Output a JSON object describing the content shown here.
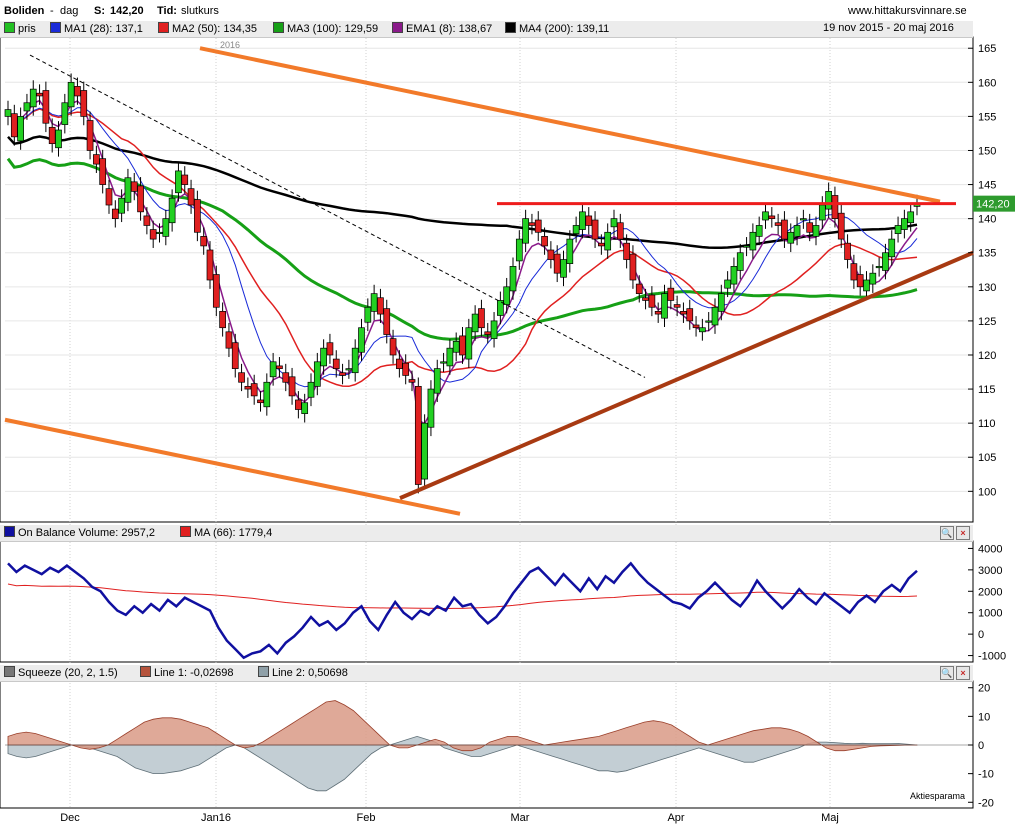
{
  "header": {
    "ticker": "Boliden",
    "dash": "-",
    "period": "dag",
    "price_label": "S:",
    "price_value": "142,20",
    "time_label": "Tid:",
    "time_value": "slutkurs",
    "site": "www.hittakursvinnare.se",
    "date_range": "19 nov 2015 - 20 maj 2016",
    "year_marker": "2016",
    "current_price": "142,20",
    "source": "Aktiesparama"
  },
  "legend_main": [
    {
      "label": "pris",
      "color": "#22c022"
    },
    {
      "label": "MA1 (28): 137,1",
      "color": "#1a2bd8"
    },
    {
      "label": "MA2 (50): 134,35",
      "color": "#e02020"
    },
    {
      "label": "MA3 (100): 129,59",
      "color": "#16a016"
    },
    {
      "label": "EMA1 (8): 138,67",
      "color": "#8a1a8a"
    },
    {
      "label": "MA4 (200): 139,11",
      "color": "#000000"
    }
  ],
  "legend_obv": [
    {
      "label": "On Balance Volume: 2957,2",
      "color": "#1010a0"
    },
    {
      "label": "MA (66): 1779,4",
      "color": "#e02020"
    }
  ],
  "legend_squeeze": [
    {
      "label": "Squeeze (20, 2, 1.5)",
      "color": "#777777"
    },
    {
      "label": "Line 1: -0,02698",
      "color": "#b5533c"
    },
    {
      "label": "Line 2: 0,50698",
      "color": "#8fa0a8"
    }
  ],
  "chart_data": [
    {
      "type": "candlestick",
      "title": "Boliden - dag",
      "yticks": [
        100,
        105,
        110,
        115,
        120,
        125,
        130,
        135,
        140,
        145,
        150,
        155,
        160,
        165
      ],
      "ylim": [
        95.5,
        166.5
      ],
      "xlabels": [
        "Dec",
        "Jan16",
        "Feb",
        "Mar",
        "Apr",
        "Maj"
      ],
      "closes": [
        156,
        152,
        155,
        157,
        159,
        158,
        154,
        151,
        153,
        157,
        160,
        158,
        155,
        150,
        148,
        145,
        142,
        140,
        143,
        146,
        144,
        141,
        139,
        137,
        138,
        140,
        143,
        147,
        145,
        142,
        138,
        136,
        131,
        127,
        124,
        121,
        118,
        116,
        115,
        114,
        113,
        116,
        119,
        118,
        116,
        114,
        112,
        113,
        116,
        119,
        121,
        120,
        118,
        117,
        118,
        121,
        124,
        127,
        129,
        126,
        123,
        120,
        118,
        117,
        116,
        101,
        110,
        115,
        118,
        119,
        121,
        122,
        120,
        124,
        126,
        124,
        123,
        125,
        128,
        130,
        133,
        137,
        140,
        139,
        138,
        136,
        134,
        132,
        134,
        137,
        139,
        141,
        139,
        137,
        136,
        138,
        140,
        137,
        134,
        131,
        129,
        128,
        127,
        126,
        129,
        128,
        127,
        126,
        125,
        124,
        124,
        125,
        127,
        129,
        131,
        133,
        135,
        136,
        138,
        139,
        141,
        140,
        139,
        137,
        138,
        139,
        140,
        138,
        139,
        142,
        144,
        140,
        137,
        134,
        131,
        130,
        131,
        132,
        133,
        135,
        137,
        139,
        140,
        141,
        142.2
      ],
      "series": [
        {
          "name": "MA1 (28)",
          "last": 137.1
        },
        {
          "name": "MA2 (50)",
          "last": 134.35
        },
        {
          "name": "MA3 (100)",
          "last": 129.59
        },
        {
          "name": "EMA1 (8)",
          "last": 138.67
        },
        {
          "name": "MA4 (200)",
          "last": 139.11
        }
      ]
    },
    {
      "type": "line",
      "title": "On Balance Volume",
      "yticks": [
        -1000,
        0,
        1000,
        2000,
        3000,
        4000
      ],
      "ylim": [
        -1300,
        4300
      ],
      "obv": [
        3300,
        2900,
        3200,
        3000,
        2800,
        3100,
        2900,
        3200,
        2900,
        2600,
        2200,
        2000,
        1500,
        1100,
        900,
        1300,
        1000,
        1400,
        1100,
        1600,
        1300,
        1700,
        1500,
        1300,
        1100,
        300,
        -300,
        -700,
        -1100,
        -900,
        -800,
        -500,
        -900,
        -400,
        -100,
        300,
        800,
        400,
        600,
        200,
        500,
        1000,
        1300,
        600,
        200,
        900,
        1500,
        1000,
        700,
        1100,
        900,
        1300,
        1100,
        1700,
        1300,
        1400,
        900,
        500,
        800,
        1300,
        1900,
        2400,
        2900,
        3100,
        2700,
        2300,
        2800,
        2400,
        2000,
        2600,
        2100,
        2700,
        2400,
        2900,
        3300,
        2800,
        2400,
        2100,
        1800,
        1500,
        1400,
        1200,
        1700,
        2000,
        2400,
        2000,
        1600,
        1300,
        1800,
        2500,
        2000,
        1600,
        1200,
        1600,
        2100,
        1700,
        1400,
        1900,
        1600,
        1300,
        1000,
        1500,
        1800,
        1500,
        2000,
        2300,
        2000,
        2600,
        2957.2
      ],
      "ma_last": 1779.4
    },
    {
      "type": "area",
      "title": "Squeeze (20, 2, 1.5)",
      "yticks": [
        -20,
        -10,
        0,
        10,
        20
      ],
      "ylim": [
        -22,
        22
      ],
      "line1": [
        3,
        4,
        4.5,
        4,
        3,
        2,
        1,
        0,
        -1,
        -1.5,
        -1,
        0,
        2,
        4,
        6,
        8,
        9,
        9.5,
        9.5,
        9,
        8,
        7,
        6,
        4,
        2,
        0,
        -1,
        -0.5,
        1,
        3,
        5,
        7,
        9,
        11,
        13,
        15,
        15.5,
        14,
        12,
        9,
        6,
        3,
        0,
        -1,
        -1,
        0,
        1,
        2,
        1,
        -1,
        -2,
        -2,
        -1,
        1,
        2,
        3,
        3,
        2,
        1,
        0,
        0.5,
        1,
        1.5,
        2,
        2.5,
        3,
        4,
        5,
        6,
        7,
        8,
        8.5,
        8,
        7,
        5,
        3,
        1,
        0,
        1,
        2,
        3,
        4,
        5,
        5.5,
        6,
        6,
        5.5,
        4.5,
        3,
        1,
        -1,
        -2,
        -2,
        -1.5,
        -1,
        -0.5,
        -0.3,
        -0.2,
        -0.1,
        0,
        -0.03
      ],
      "line2": [
        -3,
        -4,
        -4.5,
        -4,
        -3,
        -2,
        -1,
        0,
        -0.5,
        -1,
        -2,
        -3,
        -4,
        -6,
        -8,
        -9,
        -10,
        -10,
        -9.5,
        -9,
        -8,
        -7,
        -5,
        -3,
        -1,
        0,
        -1,
        -3,
        -5,
        -7,
        -9,
        -11,
        -13,
        -15,
        -16,
        -16,
        -14,
        -12,
        -9,
        -6,
        -3,
        -1,
        0,
        1,
        2,
        3,
        2,
        1,
        -1,
        -2,
        -3,
        -4,
        -4,
        -3,
        -2,
        -1,
        0,
        -1,
        -2,
        -3,
        -4,
        -5,
        -6,
        -7,
        -8,
        -9,
        -9,
        -9.5,
        -9,
        -8,
        -7,
        -6,
        -5,
        -4,
        -3,
        -2,
        -1,
        -2,
        -3,
        -4,
        -5,
        -6,
        -6,
        -5,
        -4,
        -3,
        -2,
        -1,
        0.5,
        1,
        1,
        0.8,
        0.6,
        0.5,
        0.6,
        0.5,
        0.5,
        0.5,
        0.51
      ]
    }
  ]
}
